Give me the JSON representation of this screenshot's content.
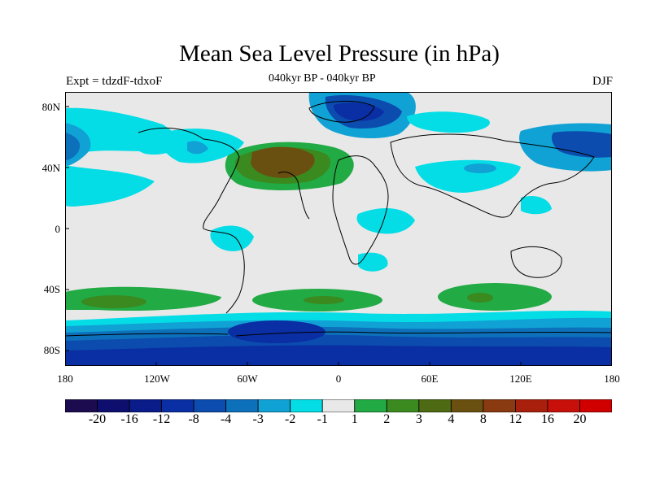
{
  "title": "Mean Sea Level Pressure (in hPa)",
  "left_label": "Expt = tdzdF-tdxoF",
  "center_label": "040kyr BP - 040kyr BP",
  "right_label": "DJF",
  "lat_labels": [
    "80N",
    "40N",
    "0",
    "40S",
    "80S"
  ],
  "lon_labels": [
    "180",
    "120W",
    "60W",
    "0",
    "60E",
    "120E",
    "180"
  ],
  "colorbar": {
    "colors": [
      "#1c0b4f",
      "#0e0e6e",
      "#0a1b8a",
      "#0a2ea3",
      "#0b4cae",
      "#0d70bb",
      "#10a2d4",
      "#05dde6",
      "#e8e8e8",
      "#22aa44",
      "#3a8a20",
      "#4e6a12",
      "#6a5010",
      "#8a3a10",
      "#a8200c",
      "#c8100a",
      "#d00000"
    ],
    "labels": [
      "-20",
      "-16",
      "-12",
      "-8",
      "-4",
      "-3",
      "-2",
      "-1",
      "1",
      "2",
      "3",
      "4",
      "8",
      "12",
      "16",
      "20"
    ]
  }
}
